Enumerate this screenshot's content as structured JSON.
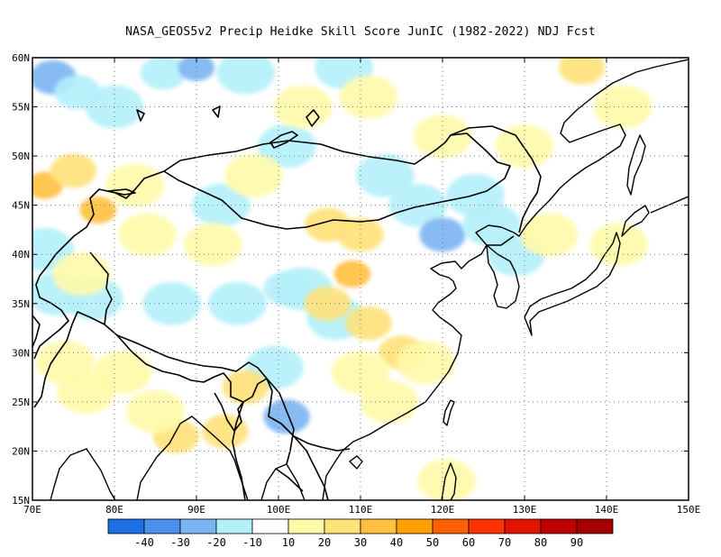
{
  "title": "NASA_GEOS5v2 Precip Heidke Skill Score JunIC (1982-2022) NDJ Fcst",
  "map": {
    "lon_range": [
      70,
      150
    ],
    "lat_range": [
      15,
      60
    ],
    "lon_ticks": [
      {
        "value": 70,
        "label": "70E"
      },
      {
        "value": 80,
        "label": "80E"
      },
      {
        "value": 90,
        "label": "90E"
      },
      {
        "value": 100,
        "label": "100E"
      },
      {
        "value": 110,
        "label": "110E"
      },
      {
        "value": 120,
        "label": "120E"
      },
      {
        "value": 130,
        "label": "130E"
      },
      {
        "value": 140,
        "label": "140E"
      },
      {
        "value": 150,
        "label": "150E"
      }
    ],
    "lat_ticks": [
      {
        "value": 15,
        "label": "15N"
      },
      {
        "value": 20,
        "label": "20N"
      },
      {
        "value": 25,
        "label": "25N"
      },
      {
        "value": 30,
        "label": "30N"
      },
      {
        "value": 35,
        "label": "35N"
      },
      {
        "value": 40,
        "label": "40N"
      },
      {
        "value": 45,
        "label": "45N"
      },
      {
        "value": 50,
        "label": "50N"
      },
      {
        "value": 55,
        "label": "55N"
      },
      {
        "value": 60,
        "label": "60N"
      }
    ],
    "grid": "dotted"
  },
  "colorbar": {
    "colors": [
      "#1e6ee6",
      "#4a90ec",
      "#7db4f2",
      "#b4f0fa",
      "#ffffff",
      "#fffaaa",
      "#ffe27a",
      "#ffc040",
      "#ffa000",
      "#ff6000",
      "#ff3200",
      "#e11400",
      "#c00000",
      "#a50000"
    ],
    "labels": [
      "-40",
      "-30",
      "-20",
      "-10",
      "10",
      "20",
      "30",
      "40",
      "50",
      "60",
      "70",
      "80",
      "90"
    ]
  },
  "chart_data": {
    "type": "heatmap",
    "title": "NASA_GEOS5v2 Precip Heidke Skill Score JunIC (1982-2022) NDJ Fcst",
    "xlabel": "",
    "ylabel": "",
    "xlim": [
      70,
      150
    ],
    "ylim": [
      15,
      60
    ],
    "levels": [
      -40,
      -30,
      -20,
      -10,
      10,
      20,
      30,
      40,
      50,
      60,
      70,
      80,
      90
    ],
    "patches": [
      {
        "lon": 72.5,
        "lat": 58.0,
        "value": -25
      },
      {
        "lon": 75.5,
        "lat": 56.5,
        "value": -20
      },
      {
        "lon": 86.0,
        "lat": 58.5,
        "value": -20
      },
      {
        "lon": 90.0,
        "lat": 59.0,
        "value": -30
      },
      {
        "lon": 96.0,
        "lat": 58.5,
        "value": -15
      },
      {
        "lon": 80.0,
        "lat": 55.0,
        "value": -12
      },
      {
        "lon": 108.0,
        "lat": 59.0,
        "value": -12
      },
      {
        "lon": 101.0,
        "lat": 51.0,
        "value": -15
      },
      {
        "lon": 113.0,
        "lat": 48.0,
        "value": -12
      },
      {
        "lon": 117.0,
        "lat": 45.0,
        "value": -15
      },
      {
        "lon": 124.0,
        "lat": 46.0,
        "value": -12
      },
      {
        "lon": 120.0,
        "lat": 42.0,
        "value": -25
      },
      {
        "lon": 126.0,
        "lat": 43.0,
        "value": -15
      },
      {
        "lon": 93.0,
        "lat": 45.0,
        "value": -12
      },
      {
        "lon": 71.5,
        "lat": 40.5,
        "value": -12
      },
      {
        "lon": 73.0,
        "lat": 36.0,
        "value": -12
      },
      {
        "lon": 77.5,
        "lat": 35.5,
        "value": -15
      },
      {
        "lon": 87.0,
        "lat": 35.0,
        "value": -15
      },
      {
        "lon": 95.0,
        "lat": 35.0,
        "value": -12
      },
      {
        "lon": 101.0,
        "lat": 36.5,
        "value": -20
      },
      {
        "lon": 103.0,
        "lat": 36.5,
        "value": -15
      },
      {
        "lon": 99.5,
        "lat": 28.5,
        "value": -12
      },
      {
        "lon": 101.0,
        "lat": 23.5,
        "value": -25
      },
      {
        "lon": 107.0,
        "lat": 33.5,
        "value": -12
      },
      {
        "lon": 129.0,
        "lat": 40.0,
        "value": -12
      },
      {
        "lon": 71.5,
        "lat": 47.0,
        "value": 30
      },
      {
        "lon": 75.0,
        "lat": 48.5,
        "value": 20
      },
      {
        "lon": 78.0,
        "lat": 44.5,
        "value": 35
      },
      {
        "lon": 76.0,
        "lat": 38.0,
        "value": 15
      },
      {
        "lon": 82.5,
        "lat": 47.0,
        "value": 15
      },
      {
        "lon": 84.0,
        "lat": 42.0,
        "value": 15
      },
      {
        "lon": 92.0,
        "lat": 41.0,
        "value": 15
      },
      {
        "lon": 97.0,
        "lat": 48.0,
        "value": 15
      },
      {
        "lon": 103.0,
        "lat": 55.0,
        "value": 15
      },
      {
        "lon": 111.0,
        "lat": 56.0,
        "value": 15
      },
      {
        "lon": 120.0,
        "lat": 52.0,
        "value": 15
      },
      {
        "lon": 130.0,
        "lat": 51.0,
        "value": 15
      },
      {
        "lon": 137.0,
        "lat": 59.0,
        "value": 20
      },
      {
        "lon": 142.0,
        "lat": 55.0,
        "value": 15
      },
      {
        "lon": 106.0,
        "lat": 43.0,
        "value": 20
      },
      {
        "lon": 110.0,
        "lat": 42.0,
        "value": 20
      },
      {
        "lon": 109.0,
        "lat": 38.0,
        "value": 35
      },
      {
        "lon": 106.0,
        "lat": 35.0,
        "value": 20
      },
      {
        "lon": 111.0,
        "lat": 33.0,
        "value": 20
      },
      {
        "lon": 115.0,
        "lat": 30.0,
        "value": 25
      },
      {
        "lon": 110.0,
        "lat": 28.0,
        "value": 15
      },
      {
        "lon": 118.0,
        "lat": 29.0,
        "value": 15
      },
      {
        "lon": 113.5,
        "lat": 25.0,
        "value": 15
      },
      {
        "lon": 96.0,
        "lat": 26.5,
        "value": 25
      },
      {
        "lon": 93.5,
        "lat": 22.0,
        "value": 20
      },
      {
        "lon": 87.5,
        "lat": 21.5,
        "value": 20
      },
      {
        "lon": 85.0,
        "lat": 24.0,
        "value": 15
      },
      {
        "lon": 76.5,
        "lat": 26.0,
        "value": 15
      },
      {
        "lon": 74.0,
        "lat": 29.0,
        "value": 15
      },
      {
        "lon": 81.0,
        "lat": 28.0,
        "value": 15
      },
      {
        "lon": 120.5,
        "lat": 17.0,
        "value": 15
      },
      {
        "lon": 133.0,
        "lat": 42.0,
        "value": 15
      },
      {
        "lon": 141.5,
        "lat": 41.0,
        "value": 15
      }
    ]
  }
}
